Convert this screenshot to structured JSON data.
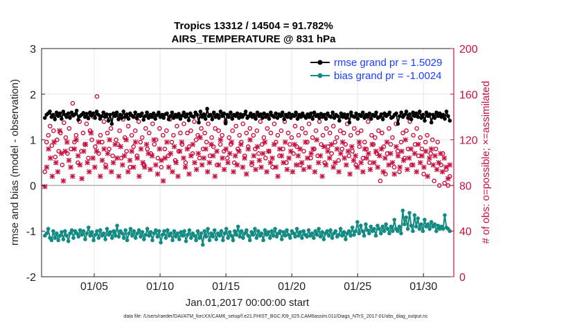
{
  "chart_data": {
    "type": "line",
    "title_line1": "Tropics 13312 / 14504 = 91.782%",
    "title_line2": "AIRS_TEMPERATURE @ 831 hPa",
    "xlabel": "Jan.01,2017 00:00:00 start",
    "ylabel_left": "rmse and bias (model - observation)",
    "ylabel_right": "# of obs: o=possible; ×=assimilated",
    "footnote": "data file: /Users/raeder/DAI/ATM_forcXX/CAM6_setup/f.e21.FHIST_BGC.f09_025.CAM6assim.011/Diags_NTrS_2017-01/obs_diag_output.nc",
    "xlim": [
      1,
      32.3
    ],
    "ylim_left": [
      -2,
      3
    ],
    "ylim_right": [
      0,
      200
    ],
    "x_ticks": [
      5,
      10,
      15,
      20,
      25,
      30
    ],
    "x_tick_labels": [
      "01/05",
      "01/10",
      "01/15",
      "01/20",
      "01/25",
      "01/30"
    ],
    "y_left_ticks": [
      -2,
      -1,
      0,
      1,
      2,
      3
    ],
    "y_left_tick_labels": [
      "-2",
      "-1",
      "0",
      "1",
      "2",
      "3"
    ],
    "y_right_ticks": [
      0,
      40,
      80,
      120,
      160,
      200
    ],
    "y_right_tick_labels": [
      "0",
      "40",
      "80",
      "120",
      "160",
      "200"
    ],
    "grid": true,
    "legend_position": "top-right",
    "colors": {
      "rmse": "#000000",
      "bias": "#138b82",
      "obs": "#c8103e",
      "legend_text": "#1a3cff",
      "zero_line": "#b0b0b0",
      "grid": "#e6e6e6"
    },
    "series": [
      {
        "name": "rmse grand pr = 1.5029",
        "key": "rmse",
        "values": [
          1.48,
          1.55,
          1.58,
          1.62,
          1.5,
          1.55,
          1.45,
          1.6,
          1.52,
          1.58,
          1.46,
          1.62,
          1.55,
          1.5,
          1.58,
          1.48,
          1.6,
          1.53,
          1.56,
          1.64,
          1.44,
          1.52,
          1.55,
          1.59,
          1.5,
          1.57,
          1.47,
          1.6,
          1.53,
          1.58,
          1.48,
          1.62,
          1.55,
          1.46,
          1.52,
          1.6,
          1.5,
          1.56,
          1.42,
          1.55,
          1.35,
          1.58,
          1.52,
          1.6,
          1.45,
          1.55,
          1.48,
          1.62,
          1.5,
          1.56,
          1.46,
          1.58,
          1.53,
          1.5,
          1.6,
          1.47,
          1.55,
          1.52,
          1.58,
          1.44,
          1.52,
          1.6,
          1.48,
          1.55,
          1.5,
          1.58,
          1.46,
          1.54,
          1.6,
          1.5,
          1.55,
          1.48,
          1.56,
          1.58,
          1.45,
          1.52,
          1.6,
          1.48,
          1.55,
          1.5,
          1.57,
          1.46,
          1.53,
          1.6,
          1.5,
          1.56,
          1.43,
          1.58,
          1.52,
          1.5,
          1.6,
          1.55,
          1.38,
          1.62,
          1.5,
          1.56,
          1.46,
          1.68,
          1.52,
          1.55,
          1.45,
          1.6,
          1.5,
          1.55,
          1.48,
          1.62,
          1.52,
          1.58,
          1.36,
          1.55,
          1.5,
          1.6,
          1.46,
          1.55,
          1.52,
          1.58,
          1.48,
          1.56,
          1.5,
          1.55,
          1.62,
          1.48,
          1.52,
          1.58,
          1.5,
          1.55,
          1.46,
          1.6,
          1.52,
          1.56,
          1.48,
          1.58,
          1.5,
          1.55,
          1.46,
          1.6,
          1.53,
          1.5,
          1.58,
          1.48,
          1.56,
          1.52,
          1.6,
          1.45,
          1.55,
          1.5,
          1.58,
          1.48,
          1.55,
          1.52,
          1.6,
          1.46,
          1.55,
          1.5,
          1.58,
          1.52,
          1.48,
          1.56,
          1.5,
          1.58,
          1.46,
          1.6,
          1.52,
          1.55,
          1.48,
          1.57,
          1.5,
          1.55,
          1.46,
          1.58,
          1.52,
          1.5,
          1.6,
          1.48,
          1.55,
          1.52,
          1.42,
          1.58,
          1.5,
          1.56,
          1.48,
          1.55,
          1.38,
          1.6,
          1.52,
          1.5,
          1.58,
          1.46,
          1.55,
          1.52,
          1.6,
          1.48,
          1.55,
          1.5,
          1.58,
          1.46,
          1.55,
          1.52,
          1.6,
          1.48,
          1.5,
          1.56,
          1.45,
          1.58,
          1.52,
          1.55,
          1.6,
          1.48,
          1.5,
          1.55,
          1.58,
          1.35,
          1.52,
          1.6,
          1.5,
          1.55,
          1.62,
          1.48,
          1.56,
          1.45,
          1.6,
          1.52,
          1.58,
          1.5,
          1.62,
          1.48,
          1.55,
          1.42,
          1.6,
          1.52,
          1.56,
          1.38,
          1.55,
          1.48,
          1.6,
          1.52,
          1.58,
          1.5,
          1.55,
          1.46,
          1.62,
          1.52,
          1.42
        ]
      },
      {
        "name": "bias grand pr = -1.0024",
        "key": "bias",
        "values": [
          -1.1,
          -1.05,
          -0.95,
          -1.15,
          -1.2,
          -1.0,
          -1.15,
          -1.05,
          -1.2,
          -1.1,
          -1.02,
          -1.18,
          -1.0,
          -1.1,
          -1.22,
          -1.05,
          -0.98,
          -1.15,
          -1.0,
          -1.05,
          -1.12,
          -0.98,
          -1.08,
          -1.0,
          -1.18,
          -1.05,
          -0.92,
          -1.1,
          -1.02,
          -1.2,
          -1.08,
          -1.0,
          -1.15,
          -0.98,
          -1.1,
          -1.05,
          -1.18,
          -0.95,
          -1.08,
          -1.02,
          -1.15,
          -1.0,
          -1.1,
          -0.88,
          -1.12,
          -1.0,
          -1.05,
          -1.15,
          -0.98,
          -1.2,
          -1.05,
          -0.95,
          -1.1,
          -1.0,
          -1.15,
          -1.05,
          -0.98,
          -1.12,
          -1.02,
          -1.18,
          -1.08,
          -0.95,
          -1.1,
          -1.02,
          -1.2,
          -1.05,
          -0.98,
          -1.12,
          -1.0,
          -1.25,
          -1.08,
          -1.0,
          -1.15,
          -0.98,
          -1.1,
          -1.05,
          -1.2,
          -1.0,
          -1.12,
          -1.05,
          -1.18,
          -1.02,
          -1.1,
          -1.0,
          -1.22,
          -1.08,
          -0.98,
          -1.15,
          -1.05,
          -1.1,
          -1.2,
          -1.0,
          -1.15,
          -1.05,
          -1.3,
          -1.0,
          -1.12,
          -0.95,
          -1.2,
          -1.05,
          -1.12,
          -0.98,
          -1.18,
          -1.05,
          -1.1,
          -1.0,
          -1.2,
          -1.05,
          -0.95,
          -1.15,
          -1.02,
          -1.1,
          -1.2,
          -1.0,
          -1.08,
          -0.9,
          -1.12,
          -1.0,
          -1.15,
          -1.05,
          -0.98,
          -1.1,
          -1.2,
          -1.02,
          -1.08,
          -0.95,
          -1.15,
          -1.0,
          -1.1,
          -1.05,
          -1.2,
          -0.98,
          -1.08,
          -1.02,
          -1.15,
          -1.0,
          -1.1,
          -0.95,
          -1.12,
          -1.05,
          -1.0,
          -1.18,
          -1.02,
          -1.1,
          -0.98,
          -1.08,
          -1.15,
          -1.0,
          -1.05,
          -1.12,
          -0.95,
          -1.1,
          -1.02,
          -1.15,
          -1.0,
          -1.08,
          -1.12,
          -0.98,
          -1.1,
          -1.05,
          -1.15,
          -1.0,
          -1.08,
          -0.95,
          -1.12,
          -1.02,
          -1.18,
          -1.05,
          -1.0,
          -1.1,
          -0.98,
          -1.15,
          -1.05,
          -1.0,
          -1.12,
          -1.08,
          -0.95,
          -1.1,
          -1.02,
          -1.18,
          -1.05,
          -1.0,
          -1.1,
          -0.92,
          -1.08,
          -1.0,
          -0.8,
          -1.05,
          -0.88,
          -1.0,
          -1.1,
          -0.85,
          -0.98,
          -1.05,
          -0.9,
          -1.0,
          -0.95,
          -1.1,
          -0.88,
          -0.95,
          -1.05,
          -0.9,
          -1.0,
          -0.85,
          -0.95,
          -1.05,
          -0.9,
          -1.0,
          -0.75,
          -0.95,
          -1.0,
          -0.9,
          -1.05,
          -0.55,
          -0.85,
          -0.7,
          -0.95,
          -0.6,
          -0.88,
          -1.0,
          -0.65,
          -0.9,
          -0.72,
          -0.95,
          -0.85,
          -1.0,
          -0.75,
          -0.9,
          -0.85,
          -0.95,
          -0.8,
          -0.9,
          -0.85,
          -1.0,
          -0.88,
          -0.95,
          -0.9,
          -0.95,
          -0.65,
          -0.92,
          -0.95,
          -1.0
        ]
      },
      {
        "name": "obs possible",
        "key": "possible",
        "values": [
          92,
          118,
          124,
          132,
          115,
          128,
          105,
          120,
          110,
          126,
          98,
          135,
          122,
          108,
          130,
          112,
          152,
          118,
          124,
          100,
          136,
          110,
          126,
          116,
          134,
          104,
          128,
          120,
          140,
          114,
          158,
          108,
          124,
          118,
          136,
          98,
          126,
          112,
          130,
          106,
          142,
          120,
          116,
          128,
          104,
          138,
          122,
          110,
          132,
          96,
          124,
          114,
          128,
          106,
          136,
          118,
          122,
          98,
          130,
          112,
          126,
          108,
          134,
          116,
          120,
          104,
          130,
          96,
          124,
          112,
          128,
          106,
          138,
          118,
          124,
          102,
          132,
          110,
          126,
          116,
          134,
          100,
          126,
          114,
          128,
          108,
          136,
          120,
          124,
          104,
          130,
          112,
          126,
          118,
          134,
          106,
          122,
          114,
          130,
          98,
          128,
          116,
          124,
          110,
          136,
          104,
          122,
          116,
          128,
          100,
          132,
          112,
          124,
          118,
          134,
          106,
          126,
          114,
          130,
          98,
          124,
          112,
          128,
          108,
          136,
          116,
          122,
          104,
          130,
          110,
          126,
          96,
          134,
          118,
          124,
          106,
          128,
          112,
          136,
          100,
          126,
          116,
          122,
          108,
          132,
          114,
          124,
          98,
          130,
          110,
          126,
          118,
          134,
          104,
          122,
          112,
          128,
          106,
          136,
          116,
          124,
          100,
          130,
          114,
          126,
          108,
          132,
          118,
          122,
          102,
          128,
          112,
          126,
          116,
          134,
          106,
          124,
          110,
          130,
          98,
          126,
          114,
          128,
          104,
          118,
          112,
          136,
          100,
          124,
          116,
          122,
          108,
          128,
          84,
          126,
          114,
          90,
          108,
          130,
          116,
          122,
          96,
          134,
          110,
          92,
          118,
          126,
          104,
          128,
          112,
          136,
          98,
          124,
          116,
          130,
          106,
          122,
          112,
          90,
          118,
          124,
          100,
          108,
          120,
          84,
          112,
          118,
          80,
          98,
          108,
          82,
          94,
          80,
          88
        ],
        "markers": "o"
      },
      {
        "name": "obs assimilated",
        "key": "assimilated",
        "values": [
          79,
          96,
          112,
          104,
          88,
          118,
          100,
          92,
          128,
          108,
          84,
          110,
          118,
          102,
          96,
          88,
          112,
          120,
          106,
          98,
          86,
          110,
          116,
          100,
          92,
          126,
          104,
          96,
          110,
          118,
          88,
          102,
          112,
          96,
          108,
          120,
          92,
          100,
          116,
          104,
          88,
          114,
          98,
          106,
          120,
          92,
          102,
          110,
          96,
          118,
          104,
          88,
          112,
          100,
          96,
          116,
          108,
          94,
          106,
          120,
          98,
          90,
          112,
          102,
          84,
          104,
          118,
          96,
          108,
          92,
          114,
          100,
          88,
          110,
          118,
          104,
          96,
          112,
          90,
          106,
          116,
          100,
          94,
          108,
          122,
          98,
          104,
          112,
          92,
          100,
          116,
          106,
          88,
          110,
          98,
          120,
          104,
          94,
          112,
          100,
          108,
          118,
          92,
          106,
          98,
          110,
          116,
          96,
          104,
          90,
          112,
          120,
          100,
          106,
          94,
          114,
          102,
          96,
          108,
          118,
          92,
          110,
          100,
          104,
          116,
          96,
          88,
          112,
          106,
          100,
          118,
          94,
          104,
          110,
          92,
          116,
          98,
          106,
          112,
          100,
          94,
          118,
          104,
          96,
          108,
          112,
          92,
          120,
          100,
          106,
          88,
          114,
          98,
          110,
          104,
          116,
          96,
          100,
          112,
          92,
          108,
          118,
          104,
          98,
          110,
          90,
          114,
          102,
          106,
          96,
          118,
          100,
          92,
          112,
          104,
          108,
          94,
          116,
          100,
          110,
          96,
          106,
          112,
          92,
          104,
          118,
          98,
          108,
          100,
          90,
          114,
          106,
          96,
          110,
          102,
          120,
          94,
          104,
          112,
          98,
          108,
          92,
          116,
          100,
          106,
          96,
          110,
          88,
          104,
          112,
          98,
          106,
          94,
          100,
          108,
          92,
          104,
          96,
          86,
          98
        ],
        "markers": "x"
      }
    ]
  }
}
